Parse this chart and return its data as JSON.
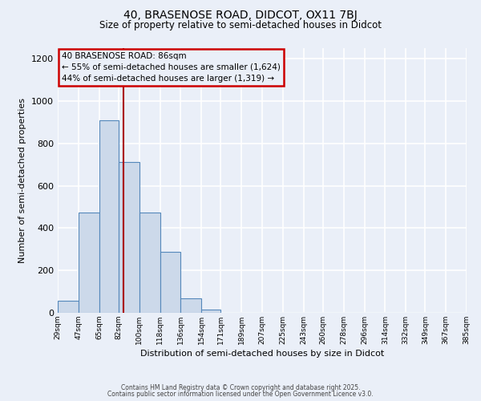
{
  "title": "40, BRASENOSE ROAD, DIDCOT, OX11 7BJ",
  "subtitle": "Size of property relative to semi-detached houses in Didcot",
  "xlabel": "Distribution of semi-detached houses by size in Didcot",
  "ylabel": "Number of semi-detached properties",
  "bin_edges": [
    29,
    47,
    65,
    82,
    100,
    118,
    136,
    154,
    171,
    189,
    207,
    225,
    243,
    260,
    278,
    296,
    314,
    332,
    349,
    367,
    385
  ],
  "bin_labels": [
    "29sqm",
    "47sqm",
    "65sqm",
    "82sqm",
    "100sqm",
    "118sqm",
    "136sqm",
    "154sqm",
    "171sqm",
    "189sqm",
    "207sqm",
    "225sqm",
    "243sqm",
    "260sqm",
    "278sqm",
    "296sqm",
    "314sqm",
    "332sqm",
    "349sqm",
    "367sqm",
    "385sqm"
  ],
  "bar_heights": [
    57,
    474,
    909,
    714,
    474,
    286,
    68,
    15,
    0,
    0,
    0,
    0,
    0,
    0,
    0,
    0,
    0,
    0,
    0,
    0
  ],
  "bar_color": "#ccd9ea",
  "bar_edge_color": "#5588bb",
  "property_size": 86,
  "vline_color": "#aa0000",
  "ylim": [
    0,
    1250
  ],
  "yticks": [
    0,
    200,
    400,
    600,
    800,
    1000,
    1200
  ],
  "annotation_title": "40 BRASENOSE ROAD: 86sqm",
  "annotation_line1": "← 55% of semi-detached houses are smaller (1,624)",
  "annotation_line2": "44% of semi-detached houses are larger (1,319) →",
  "annotation_box_edgecolor": "#cc0000",
  "background_color": "#eaeff8",
  "grid_color": "#ffffff",
  "footer1": "Contains HM Land Registry data © Crown copyright and database right 2025.",
  "footer2": "Contains public sector information licensed under the Open Government Licence v3.0."
}
